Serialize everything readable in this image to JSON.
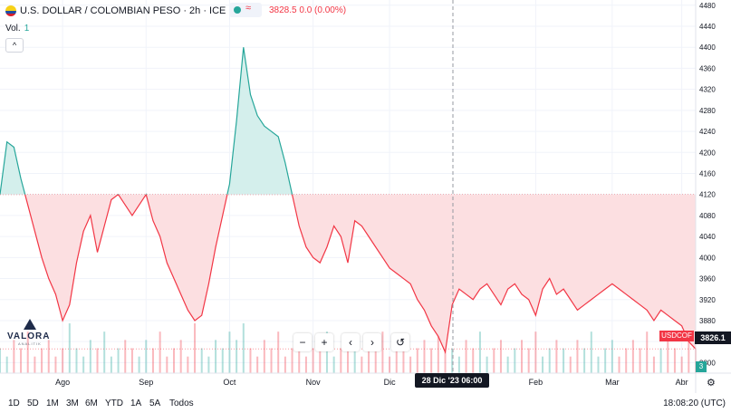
{
  "header": {
    "title": "U.S. DOLLAR / COLOMBIAN PESO · 2h · ICE",
    "ohlc_text": "3828.5  0.0 (0.00%)",
    "volume_label": "Vol.",
    "volume_value": "1",
    "collapse_symbol": "^"
  },
  "logo": {
    "name": "VALORA",
    "sub": "ANALITIK"
  },
  "nav": {
    "zoom_out": "−",
    "zoom_in": "+",
    "back": "‹",
    "forward": "›",
    "reset": "↺"
  },
  "bottom_bar": {
    "ranges": [
      "1D",
      "5D",
      "1M",
      "3M",
      "6M",
      "YTD",
      "1A",
      "5A",
      "Todos"
    ],
    "clock": "18:08:20 (UTC)"
  },
  "cursor_label": "28 Dic '23   06:00",
  "symbol_tag": "USDCOF",
  "price_tag": "3826.1",
  "volume_badge": "3",
  "colors": {
    "up": "#26a69a",
    "down": "#f23645",
    "up_fill": "#d4efec",
    "down_fill": "#fcdfe1",
    "grid": "#f0f3fa"
  },
  "chart_data": {
    "type": "area",
    "title": "U.S. DOLLAR / COLOMBIAN PESO · 2h · ICE",
    "baseline": 4120,
    "x_labels": [
      "Ago",
      "Sep",
      "Oct",
      "Nov",
      "Dic",
      "Feb",
      "Mar",
      "Abr"
    ],
    "y_ticks": [
      3800,
      3840,
      3880,
      3920,
      3960,
      4000,
      4040,
      4080,
      4120,
      4160,
      4200,
      4240,
      4280,
      4320,
      4360,
      4400,
      4440,
      4480
    ],
    "ylim": [
      3780,
      4490
    ],
    "xlim": [
      0,
      100
    ],
    "series": [
      {
        "x": [
          0,
          1,
          2,
          3,
          4,
          5,
          6,
          7,
          8,
          9,
          10,
          11,
          12,
          13,
          14,
          15,
          16,
          17,
          18,
          19,
          20,
          21,
          22,
          23,
          24,
          25,
          26,
          27,
          28,
          29,
          30,
          31,
          32,
          33,
          34,
          35,
          36,
          37,
          38,
          39,
          40,
          41,
          42,
          43,
          44,
          45,
          46,
          47,
          48,
          49,
          50,
          51,
          52,
          53,
          54,
          55,
          56,
          57,
          58,
          59,
          60,
          61,
          62,
          63,
          64,
          65,
          66,
          67,
          68,
          69,
          70,
          71,
          72,
          73,
          74,
          75,
          76,
          77,
          78,
          79,
          80,
          81,
          82,
          83,
          84,
          85,
          86,
          87,
          88,
          89,
          90,
          91,
          92,
          93,
          94,
          95,
          96,
          97,
          98,
          99,
          100
        ],
        "values": [
          4120,
          4220,
          4210,
          4150,
          4100,
          4050,
          4000,
          3960,
          3930,
          3880,
          3910,
          3990,
          4050,
          4080,
          4010,
          4060,
          4110,
          4120,
          4100,
          4080,
          4100,
          4120,
          4070,
          4040,
          3990,
          3960,
          3930,
          3900,
          3880,
          3890,
          3950,
          4020,
          4080,
          4140,
          4260,
          4400,
          4310,
          4270,
          4250,
          4240,
          4230,
          4180,
          4120,
          4060,
          4020,
          4000,
          3990,
          4020,
          4060,
          4040,
          3990,
          4070,
          4060,
          4040,
          4020,
          4000,
          3980,
          3970,
          3960,
          3950,
          3920,
          3900,
          3870,
          3850,
          3820,
          3910,
          3940,
          3930,
          3920,
          3940,
          3950,
          3930,
          3910,
          3940,
          3950,
          3930,
          3920,
          3890,
          3940,
          3960,
          3930,
          3940,
          3920,
          3900,
          3910,
          3920,
          3930,
          3940,
          3950,
          3940,
          3930,
          3920,
          3910,
          3900,
          3880,
          3900,
          3890,
          3880,
          3870,
          3840,
          3826
        ]
      }
    ],
    "volume": [
      3,
      2,
      4,
      3,
      5,
      2,
      3,
      4,
      2,
      3,
      6,
      3,
      2,
      4,
      3,
      5,
      2,
      3,
      4,
      3,
      2,
      4,
      3,
      5,
      2,
      3,
      4,
      2,
      6,
      3,
      2,
      4,
      3,
      5,
      4,
      6,
      3,
      2,
      4,
      3,
      5,
      2,
      3,
      4,
      2,
      3,
      4,
      5,
      2,
      3,
      4,
      3,
      2,
      4,
      3,
      5,
      2,
      3,
      4,
      2,
      3,
      4,
      3,
      5,
      6,
      3,
      2,
      4,
      3,
      5,
      2,
      3,
      4,
      2,
      3,
      4,
      3,
      5,
      2,
      3,
      4,
      3,
      2,
      4,
      3,
      5,
      2,
      3,
      4,
      2,
      3,
      4,
      3,
      5,
      2,
      3,
      4,
      3,
      2,
      4,
      3
    ]
  }
}
